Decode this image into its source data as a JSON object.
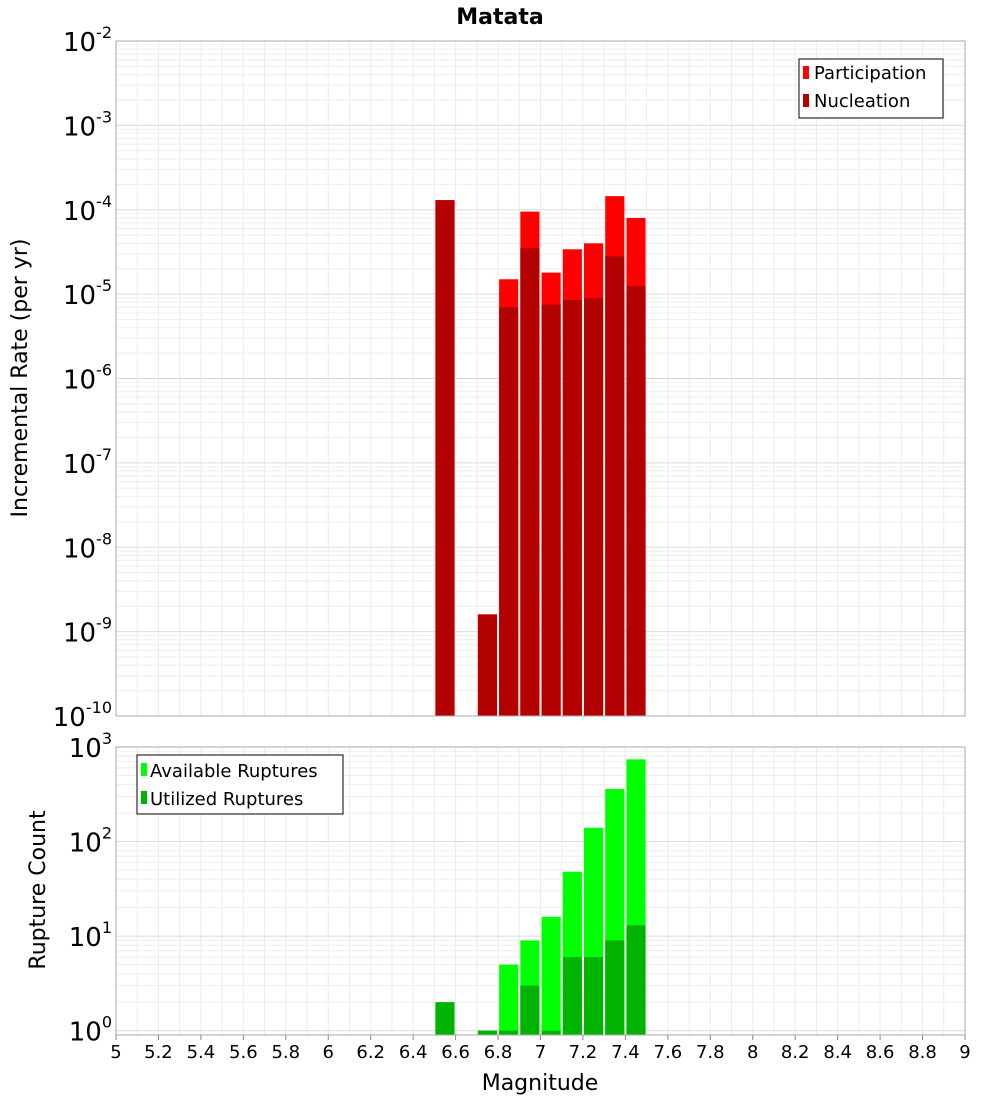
{
  "title": "Matata",
  "shared_x": {
    "label": "Magnitude",
    "xlim": [
      5,
      9
    ],
    "ticks": [
      "5",
      "5.2",
      "5.4",
      "5.6",
      "5.8",
      "6",
      "6.2",
      "6.4",
      "6.6",
      "6.8",
      "7",
      "7.2",
      "7.4",
      "7.6",
      "7.8",
      "8",
      "8.2",
      "8.4",
      "8.6",
      "8.8",
      "9"
    ]
  },
  "chart_data": [
    {
      "type": "bar",
      "ylabel": "Incremental Rate (per yr)",
      "yscale": "log",
      "ylim": [
        1e-10,
        0.01
      ],
      "y_ticks": [
        {
          "base": "10",
          "exp": "-10",
          "value": 1e-10
        },
        {
          "base": "10",
          "exp": "-9",
          "value": 1e-09
        },
        {
          "base": "10",
          "exp": "-8",
          "value": 1e-08
        },
        {
          "base": "10",
          "exp": "-7",
          "value": 1e-07
        },
        {
          "base": "10",
          "exp": "-6",
          "value": 1e-06
        },
        {
          "base": "10",
          "exp": "-5",
          "value": 1e-05
        },
        {
          "base": "10",
          "exp": "-4",
          "value": 0.0001
        },
        {
          "base": "10",
          "exp": "-3",
          "value": 0.001
        },
        {
          "base": "10",
          "exp": "-2",
          "value": 0.01
        }
      ],
      "grid": true,
      "legend_position": "top-right",
      "x": [
        6.55,
        6.75,
        6.85,
        6.95,
        7.05,
        7.15,
        7.25,
        7.35,
        7.45
      ],
      "bar_width": 0.09,
      "series": [
        {
          "name": "Participation",
          "color": "#ff0000",
          "values": [
            0.00013,
            1.6e-09,
            1.5e-05,
            9.5e-05,
            1.8e-05,
            3.4e-05,
            4e-05,
            0.000145,
            8e-05
          ]
        },
        {
          "name": "Nucleation",
          "color": "#b30000",
          "values": [
            0.00013,
            1.6e-09,
            7e-06,
            3.5e-05,
            7.5e-06,
            8.5e-06,
            9e-06,
            2.8e-05,
            1.25e-05
          ]
        }
      ]
    },
    {
      "type": "bar",
      "ylabel": "Rupture Count",
      "yscale": "log",
      "ylim": [
        0.9,
        1000
      ],
      "y_ticks": [
        {
          "base": "10",
          "exp": "0",
          "value": 1
        },
        {
          "base": "10",
          "exp": "1",
          "value": 10
        },
        {
          "base": "10",
          "exp": "2",
          "value": 100
        },
        {
          "base": "10",
          "exp": "3",
          "value": 1000
        }
      ],
      "grid": true,
      "legend_position": "top-left",
      "x": [
        6.55,
        6.75,
        6.85,
        6.95,
        7.05,
        7.15,
        7.25,
        7.35,
        7.45
      ],
      "bar_width": 0.09,
      "series": [
        {
          "name": "Available Ruptures",
          "color": "#00ff00",
          "values": [
            2,
            1,
            5,
            9,
            16,
            48,
            140,
            360,
            740
          ]
        },
        {
          "name": "Utilized Ruptures",
          "color": "#00b300",
          "values": [
            2,
            1,
            1,
            3,
            1,
            6,
            6,
            9,
            13
          ]
        }
      ]
    }
  ]
}
